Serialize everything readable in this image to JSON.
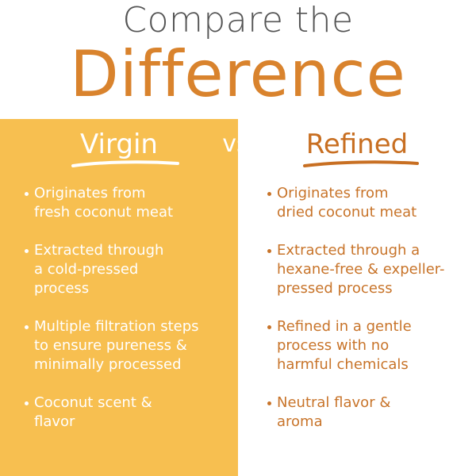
{
  "header": {
    "line1": "Compare the",
    "line2": "Difference"
  },
  "vs": "vs",
  "left": {
    "heading": "Virgin",
    "items": [
      {
        "lines": [
          "Originates from",
          "fresh coconut meat"
        ]
      },
      {
        "lines": [
          "Extracted through",
          "a cold-pressed",
          "process"
        ]
      },
      {
        "lines": [
          "Multiple filtration steps",
          "to ensure pureness &",
          "minimally processed"
        ]
      },
      {
        "lines": [
          "Coconut scent &",
          "flavor"
        ]
      }
    ]
  },
  "right": {
    "heading": "Refined",
    "items": [
      {
        "lines": [
          "Originates from",
          "dried coconut meat"
        ]
      },
      {
        "lines": [
          "Extracted through a",
          "hexane-free & expeller-",
          "pressed process"
        ]
      },
      {
        "lines": [
          "Refined in a gentle",
          "process with no",
          "harmful chemicals"
        ]
      },
      {
        "lines": [
          "Neutral flavor &",
          "aroma"
        ]
      }
    ]
  }
}
